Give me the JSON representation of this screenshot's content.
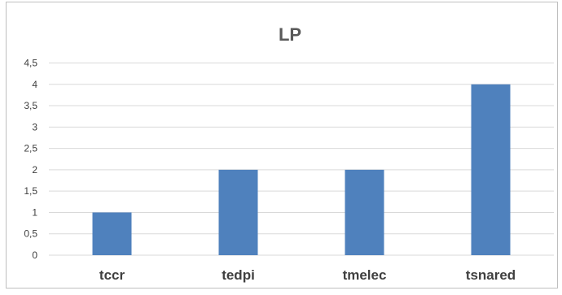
{
  "chart_data": {
    "type": "bar",
    "title": "LP",
    "categories": [
      "tccr",
      "tedpi",
      "tmelec",
      "tsnared"
    ],
    "values": [
      1,
      2,
      2,
      4
    ],
    "ylim": [
      0,
      4.5
    ],
    "yticks": [
      "0",
      "0,5",
      "1",
      "1,5",
      "2",
      "2,5",
      "3",
      "3,5",
      "4",
      "4,5"
    ],
    "grid": true,
    "legend": "none",
    "bar_color": "#4f81bd",
    "grid_color": "#d9d9d9"
  }
}
